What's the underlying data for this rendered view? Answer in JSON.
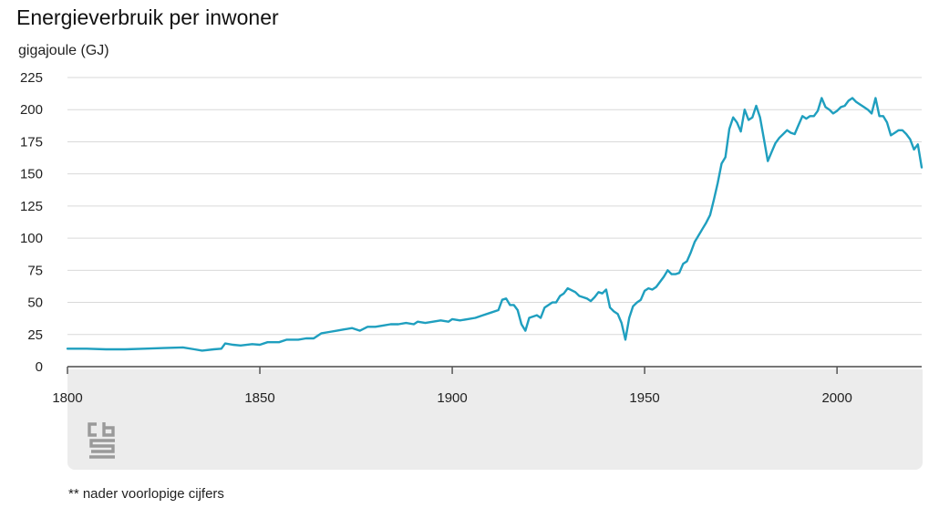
{
  "chart_data": {
    "type": "line",
    "title": "Energieverbruik per inwoner",
    "ylabel": "gigajoule (GJ)",
    "xlabel": "",
    "xlim": [
      1800,
      2022
    ],
    "ylim": [
      0,
      225
    ],
    "x_ticks": [
      1800,
      1850,
      1900,
      1950,
      2000
    ],
    "y_ticks": [
      0,
      25,
      50,
      75,
      100,
      125,
      150,
      175,
      200,
      225
    ],
    "grid": true,
    "color": "#1f9fbf",
    "series": [
      {
        "name": "",
        "points": [
          [
            1800,
            14
          ],
          [
            1805,
            14
          ],
          [
            1810,
            13.5
          ],
          [
            1815,
            13.5
          ],
          [
            1820,
            14
          ],
          [
            1825,
            14.5
          ],
          [
            1830,
            15
          ],
          [
            1833,
            13.5
          ],
          [
            1835,
            12.5
          ],
          [
            1838,
            13.5
          ],
          [
            1840,
            14
          ],
          [
            1841,
            18
          ],
          [
            1843,
            17
          ],
          [
            1845,
            16.5
          ],
          [
            1848,
            17.5
          ],
          [
            1850,
            17
          ],
          [
            1852,
            19
          ],
          [
            1855,
            19
          ],
          [
            1857,
            21
          ],
          [
            1860,
            21
          ],
          [
            1862,
            22
          ],
          [
            1864,
            22
          ],
          [
            1866,
            26
          ],
          [
            1868,
            27
          ],
          [
            1870,
            28
          ],
          [
            1872,
            29
          ],
          [
            1874,
            30
          ],
          [
            1876,
            28
          ],
          [
            1878,
            31
          ],
          [
            1880,
            31
          ],
          [
            1882,
            32
          ],
          [
            1884,
            33
          ],
          [
            1886,
            33
          ],
          [
            1888,
            34
          ],
          [
            1890,
            33
          ],
          [
            1891,
            35
          ],
          [
            1893,
            34
          ],
          [
            1895,
            35
          ],
          [
            1897,
            36
          ],
          [
            1899,
            35
          ],
          [
            1900,
            37
          ],
          [
            1902,
            36
          ],
          [
            1904,
            37
          ],
          [
            1906,
            38
          ],
          [
            1908,
            40
          ],
          [
            1910,
            42
          ],
          [
            1912,
            44
          ],
          [
            1913,
            52
          ],
          [
            1914,
            53
          ],
          [
            1915,
            48
          ],
          [
            1916,
            48
          ],
          [
            1917,
            44
          ],
          [
            1918,
            33
          ],
          [
            1919,
            28
          ],
          [
            1920,
            38
          ],
          [
            1922,
            40
          ],
          [
            1923,
            38
          ],
          [
            1924,
            46
          ],
          [
            1926,
            50
          ],
          [
            1927,
            50
          ],
          [
            1928,
            55
          ],
          [
            1929,
            57
          ],
          [
            1930,
            61
          ],
          [
            1932,
            58
          ],
          [
            1933,
            55
          ],
          [
            1934,
            54
          ],
          [
            1935,
            53
          ],
          [
            1936,
            51
          ],
          [
            1937,
            54
          ],
          [
            1938,
            58
          ],
          [
            1939,
            57
          ],
          [
            1940,
            60
          ],
          [
            1941,
            46
          ],
          [
            1942,
            43
          ],
          [
            1943,
            41
          ],
          [
            1944,
            34
          ],
          [
            1945,
            21
          ],
          [
            1946,
            38
          ],
          [
            1947,
            47
          ],
          [
            1948,
            50
          ],
          [
            1949,
            52
          ],
          [
            1950,
            59
          ],
          [
            1951,
            61
          ],
          [
            1952,
            60
          ],
          [
            1953,
            62
          ],
          [
            1954,
            66
          ],
          [
            1955,
            70
          ],
          [
            1956,
            75
          ],
          [
            1957,
            72
          ],
          [
            1958,
            72
          ],
          [
            1959,
            73
          ],
          [
            1960,
            80
          ],
          [
            1961,
            82
          ],
          [
            1962,
            89
          ],
          [
            1963,
            97
          ],
          [
            1964,
            102
          ],
          [
            1965,
            107
          ],
          [
            1966,
            112
          ],
          [
            1967,
            118
          ],
          [
            1968,
            130
          ],
          [
            1969,
            143
          ],
          [
            1970,
            158
          ],
          [
            1971,
            163
          ],
          [
            1972,
            185
          ],
          [
            1973,
            194
          ],
          [
            1974,
            190
          ],
          [
            1975,
            183
          ],
          [
            1976,
            200
          ],
          [
            1977,
            192
          ],
          [
            1978,
            194
          ],
          [
            1979,
            203
          ],
          [
            1980,
            194
          ],
          [
            1981,
            177
          ],
          [
            1982,
            160
          ],
          [
            1983,
            167
          ],
          [
            1984,
            174
          ],
          [
            1985,
            178
          ],
          [
            1986,
            181
          ],
          [
            1987,
            184
          ],
          [
            1988,
            182
          ],
          [
            1989,
            181
          ],
          [
            1990,
            188
          ],
          [
            1991,
            195
          ],
          [
            1992,
            193
          ],
          [
            1993,
            195
          ],
          [
            1994,
            195
          ],
          [
            1995,
            199
          ],
          [
            1996,
            209
          ],
          [
            1997,
            202
          ],
          [
            1998,
            200
          ],
          [
            1999,
            197
          ],
          [
            2000,
            199
          ],
          [
            2001,
            202
          ],
          [
            2002,
            203
          ],
          [
            2003,
            207
          ],
          [
            2004,
            209
          ],
          [
            2005,
            206
          ],
          [
            2006,
            204
          ],
          [
            2007,
            202
          ],
          [
            2008,
            200
          ],
          [
            2009,
            197
          ],
          [
            2010,
            209
          ],
          [
            2011,
            195
          ],
          [
            2012,
            195
          ],
          [
            2013,
            190
          ],
          [
            2014,
            180
          ],
          [
            2015,
            182
          ],
          [
            2016,
            184
          ],
          [
            2017,
            184
          ],
          [
            2018,
            181
          ],
          [
            2019,
            177
          ],
          [
            2020,
            169
          ],
          [
            2021,
            173
          ],
          [
            2022,
            155
          ]
        ]
      }
    ]
  },
  "footnote": "** nader voorlopige cijfers",
  "logo": {
    "icon": "cbs-logo-icon",
    "color": "#9a9a9a"
  }
}
